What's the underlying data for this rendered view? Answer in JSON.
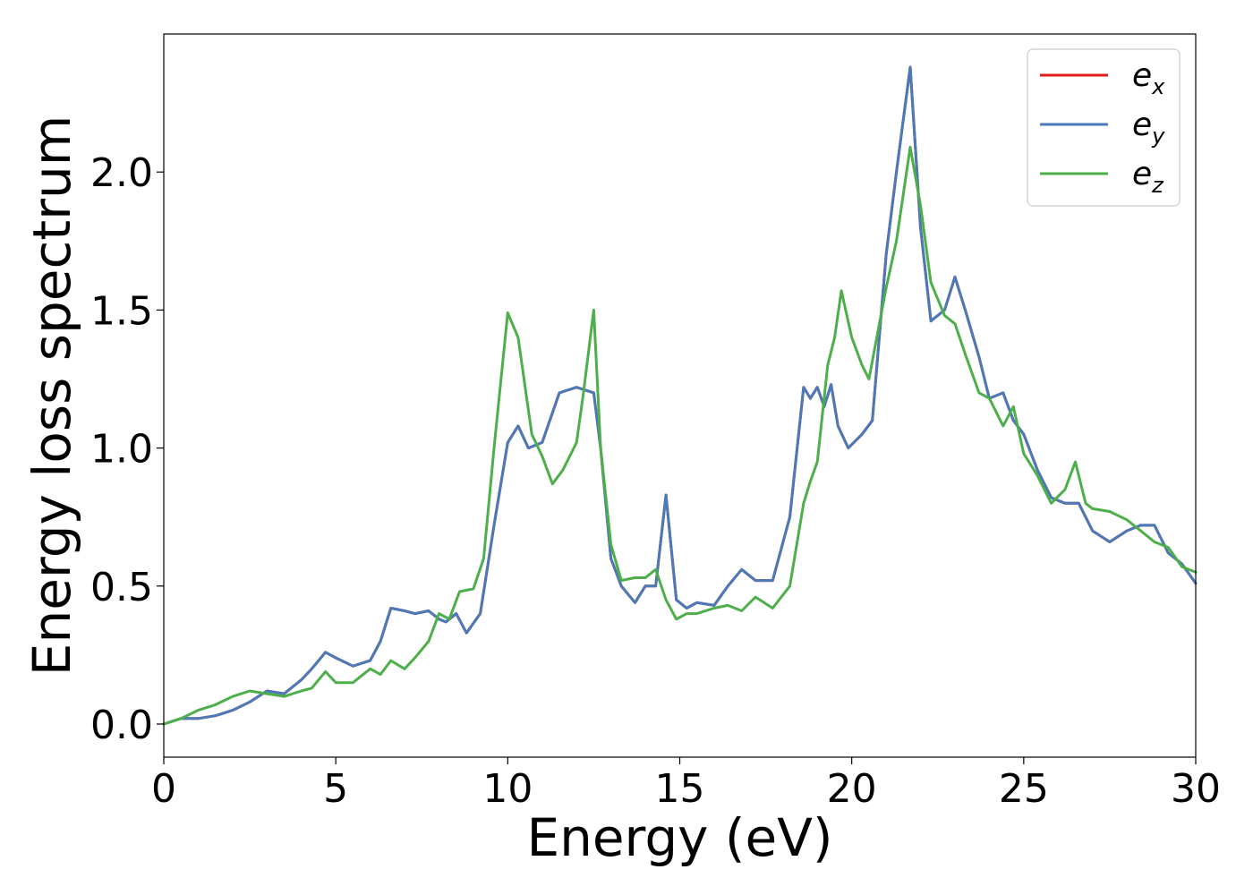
{
  "chart_data": {
    "type": "line",
    "xlabel": "Energy (eV)",
    "ylabel": "Energy loss spectrum",
    "xlim": [
      0,
      30
    ],
    "ylim": [
      -0.12,
      2.5
    ],
    "xticks": [
      0,
      5,
      10,
      15,
      20,
      25,
      30
    ],
    "yticks": [
      0.0,
      0.5,
      1.0,
      1.5,
      2.0
    ],
    "xtick_labels": [
      "0",
      "5",
      "10",
      "15",
      "20",
      "25",
      "30"
    ],
    "ytick_labels": [
      "0.0",
      "0.5",
      "1.0",
      "1.5",
      "2.0"
    ],
    "grid": false,
    "legend_position": "top-right",
    "series": [
      {
        "name": "e",
        "subscript": "x",
        "color": "#e41a1c",
        "x": [
          0,
          0.5,
          1,
          1.5,
          2,
          2.5,
          3,
          3.5,
          4,
          4.3,
          4.7,
          5,
          5.5,
          6,
          6.3,
          6.6,
          7,
          7.3,
          7.7,
          8,
          8.2,
          8.5,
          8.8,
          9.2,
          9.6,
          10,
          10.3,
          10.6,
          11,
          11.5,
          12,
          12.5,
          12.7,
          13,
          13.3,
          13.7,
          14,
          14.3,
          14.6,
          14.9,
          15.2,
          15.5,
          16,
          16.4,
          16.8,
          17.2,
          17.7,
          18.2,
          18.6,
          18.8,
          19,
          19.2,
          19.4,
          19.6,
          19.9,
          20.3,
          20.6,
          21,
          21.3,
          21.7,
          22,
          22.3,
          22.7,
          23,
          23.3,
          23.7,
          24,
          24.4,
          24.7,
          25,
          25.4,
          25.8,
          26.2,
          26.6,
          27,
          27.5,
          28,
          28.4,
          28.8,
          29.2,
          29.6,
          30
        ],
        "y": [
          0,
          0.02,
          0.02,
          0.03,
          0.05,
          0.08,
          0.12,
          0.11,
          0.16,
          0.2,
          0.26,
          0.24,
          0.21,
          0.23,
          0.3,
          0.42,
          0.41,
          0.4,
          0.41,
          0.38,
          0.37,
          0.4,
          0.33,
          0.4,
          0.72,
          1.02,
          1.08,
          1.0,
          1.02,
          1.2,
          1.22,
          1.2,
          1.0,
          0.6,
          0.5,
          0.44,
          0.5,
          0.5,
          0.83,
          0.45,
          0.42,
          0.44,
          0.43,
          0.5,
          0.56,
          0.52,
          0.52,
          0.75,
          1.22,
          1.18,
          1.22,
          1.15,
          1.23,
          1.08,
          1.0,
          1.05,
          1.1,
          1.7,
          2.0,
          2.38,
          1.8,
          1.46,
          1.5,
          1.62,
          1.5,
          1.33,
          1.18,
          1.2,
          1.1,
          1.05,
          0.92,
          0.82,
          0.8,
          0.8,
          0.7,
          0.66,
          0.7,
          0.72,
          0.72,
          0.62,
          0.58,
          0.51
        ]
      },
      {
        "name": "e",
        "subscript": "y",
        "color": "#4a7ab7",
        "x": [
          0,
          0.5,
          1,
          1.5,
          2,
          2.5,
          3,
          3.5,
          4,
          4.3,
          4.7,
          5,
          5.5,
          6,
          6.3,
          6.6,
          7,
          7.3,
          7.7,
          8,
          8.2,
          8.5,
          8.8,
          9.2,
          9.6,
          10,
          10.3,
          10.6,
          11,
          11.5,
          12,
          12.5,
          12.7,
          13,
          13.3,
          13.7,
          14,
          14.3,
          14.6,
          14.9,
          15.2,
          15.5,
          16,
          16.4,
          16.8,
          17.2,
          17.7,
          18.2,
          18.6,
          18.8,
          19,
          19.2,
          19.4,
          19.6,
          19.9,
          20.3,
          20.6,
          21,
          21.3,
          21.7,
          22,
          22.3,
          22.7,
          23,
          23.3,
          23.7,
          24,
          24.4,
          24.7,
          25,
          25.4,
          25.8,
          26.2,
          26.6,
          27,
          27.5,
          28,
          28.4,
          28.8,
          29.2,
          29.6,
          30
        ],
        "y": [
          0,
          0.02,
          0.02,
          0.03,
          0.05,
          0.08,
          0.12,
          0.11,
          0.16,
          0.2,
          0.26,
          0.24,
          0.21,
          0.23,
          0.3,
          0.42,
          0.41,
          0.4,
          0.41,
          0.38,
          0.37,
          0.4,
          0.33,
          0.4,
          0.72,
          1.02,
          1.08,
          1.0,
          1.02,
          1.2,
          1.22,
          1.2,
          1.0,
          0.6,
          0.5,
          0.44,
          0.5,
          0.5,
          0.83,
          0.45,
          0.42,
          0.44,
          0.43,
          0.5,
          0.56,
          0.52,
          0.52,
          0.75,
          1.22,
          1.18,
          1.22,
          1.15,
          1.23,
          1.08,
          1.0,
          1.05,
          1.1,
          1.7,
          2.0,
          2.38,
          1.8,
          1.46,
          1.5,
          1.62,
          1.5,
          1.33,
          1.18,
          1.2,
          1.1,
          1.05,
          0.92,
          0.82,
          0.8,
          0.8,
          0.7,
          0.66,
          0.7,
          0.72,
          0.72,
          0.62,
          0.58,
          0.51
        ]
      },
      {
        "name": "e",
        "subscript": "z",
        "color": "#4daf4a",
        "x": [
          0,
          0.5,
          1,
          1.5,
          2,
          2.5,
          3,
          3.5,
          4,
          4.3,
          4.7,
          5,
          5.5,
          6,
          6.3,
          6.6,
          7,
          7.3,
          7.7,
          8,
          8.3,
          8.6,
          9,
          9.3,
          9.6,
          10,
          10.3,
          10.7,
          11,
          11.3,
          11.6,
          12,
          12.2,
          12.5,
          12.7,
          13,
          13.3,
          13.7,
          14,
          14.3,
          14.6,
          14.9,
          15.2,
          15.5,
          16,
          16.4,
          16.8,
          17.2,
          17.7,
          18.2,
          18.6,
          18.8,
          19,
          19.3,
          19.5,
          19.7,
          20,
          20.3,
          20.5,
          21,
          21.3,
          21.7,
          22,
          22.3,
          22.7,
          23,
          23.3,
          23.7,
          24,
          24.4,
          24.7,
          25,
          25.4,
          25.8,
          26.2,
          26.5,
          26.8,
          27,
          27.5,
          28,
          28.4,
          28.8,
          29.2,
          29.6,
          30
        ],
        "y": [
          0,
          0.02,
          0.05,
          0.07,
          0.1,
          0.12,
          0.11,
          0.1,
          0.12,
          0.13,
          0.19,
          0.15,
          0.15,
          0.2,
          0.18,
          0.23,
          0.2,
          0.24,
          0.3,
          0.4,
          0.38,
          0.48,
          0.49,
          0.6,
          1.0,
          1.49,
          1.4,
          1.05,
          0.97,
          0.87,
          0.92,
          1.02,
          1.2,
          1.5,
          1.0,
          0.65,
          0.52,
          0.53,
          0.53,
          0.56,
          0.45,
          0.38,
          0.4,
          0.4,
          0.42,
          0.43,
          0.41,
          0.46,
          0.42,
          0.5,
          0.8,
          0.88,
          0.95,
          1.3,
          1.4,
          1.57,
          1.4,
          1.3,
          1.25,
          1.58,
          1.75,
          2.09,
          1.88,
          1.6,
          1.48,
          1.45,
          1.34,
          1.2,
          1.18,
          1.08,
          1.15,
          0.98,
          0.9,
          0.8,
          0.85,
          0.95,
          0.8,
          0.78,
          0.77,
          0.74,
          0.7,
          0.66,
          0.64,
          0.57,
          0.55
        ]
      }
    ]
  }
}
